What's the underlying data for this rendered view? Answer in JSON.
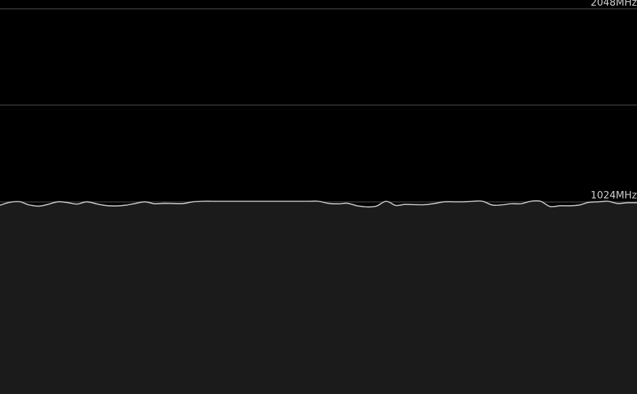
{
  "chart_data": {
    "type": "area",
    "title": "",
    "xlabel": "",
    "ylabel": "",
    "ylim": [
      0,
      2048
    ],
    "y_tick_labels": [
      {
        "value": 2048,
        "label": "2048MHz"
      },
      {
        "value": 1024,
        "label": "1024MHz"
      }
    ],
    "gridlines": [
      2048,
      1536,
      1024,
      512
    ],
    "grid": true,
    "colors": {
      "background": "#000000",
      "fill": "#1b1b1b",
      "line": "#c8c8c8",
      "grid": "#3a3a3a",
      "label": "#d0d0d0"
    },
    "series": [
      {
        "values": [
          1003,
          1018,
          1022,
          1005,
          998,
          1008,
          1021,
          1017,
          1009,
          1021,
          1010,
          1001,
          999,
          1003,
          1012,
          1021,
          1011,
          1013,
          1012,
          1012,
          1021,
          1024,
          1024,
          1024,
          1024,
          1024,
          1024,
          1024,
          1024,
          1024,
          1024,
          1024,
          1024,
          1024,
          1013,
          1010,
          1013,
          1000,
          994,
          998,
          1024,
          1002,
          1008,
          1006,
          1006,
          1012,
          1021,
          1021,
          1021,
          1024,
          1024,
          1004,
          1005,
          1011,
          1011,
          1024,
          1024,
          996,
          1000,
          1000,
          1004,
          1018,
          1021,
          1024,
          1012,
          1016,
          1016
        ]
      }
    ]
  }
}
